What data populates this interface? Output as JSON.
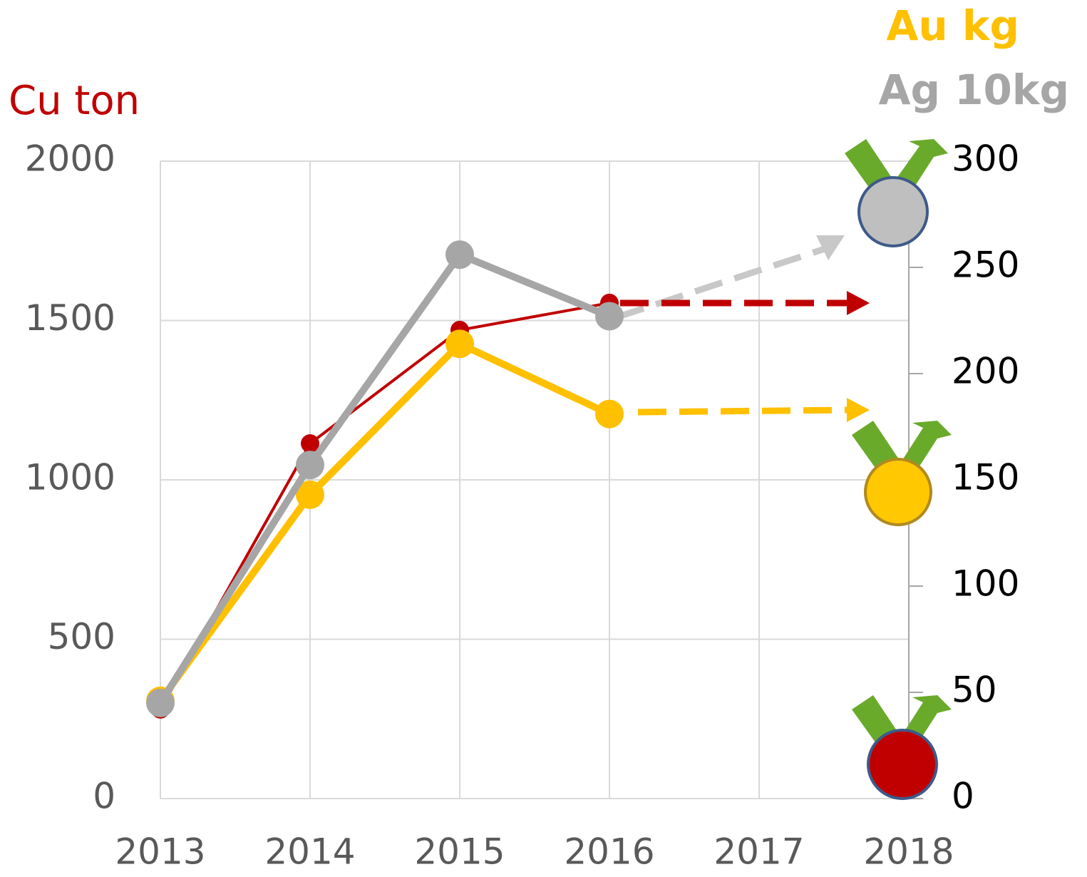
{
  "chart_data": {
    "type": "line",
    "y_label": "Cu ton",
    "y2_labels": [
      "Au kg",
      "Ag 10kg"
    ],
    "categories": [
      "2013",
      "2014",
      "2015",
      "2016",
      "2017",
      "2018"
    ],
    "series": [
      {
        "name": "Cu ton",
        "color": "#c00000",
        "axis": "y",
        "width": 4,
        "values": [
          280,
          1114,
          1470,
          1555,
          null,
          null
        ]
      },
      {
        "name": "Au kg",
        "color": "#ffc000",
        "axis": "y2",
        "width": 10,
        "values": [
          46,
          143,
          214,
          181,
          null,
          null
        ]
      },
      {
        "name": "Ag 10kg",
        "color": "#a6a6a6",
        "axis": "y2",
        "width": 10,
        "values": [
          45,
          157,
          256,
          227,
          null,
          null
        ]
      }
    ],
    "ylim": [
      0,
      2000
    ],
    "yticks": [
      0,
      500,
      1000,
      1500,
      2000
    ],
    "y2lim": [
      0,
      300
    ],
    "y2ticks": [
      0,
      50,
      100,
      150,
      200,
      250,
      300
    ],
    "grid": true
  }
}
